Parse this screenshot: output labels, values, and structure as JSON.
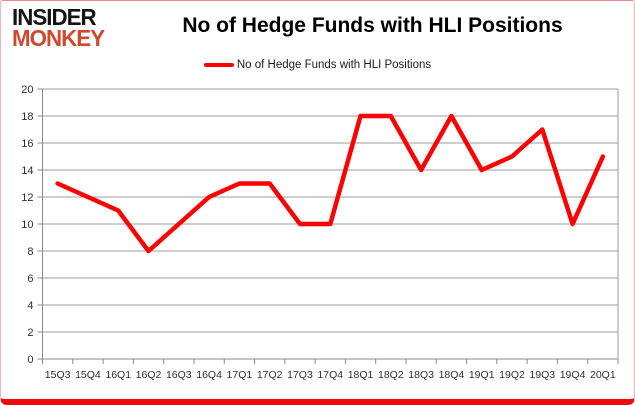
{
  "logo": {
    "line1": "INSIDER",
    "line2": "MONKEY",
    "accent_color": "#cd4a2e"
  },
  "header": {
    "title": "No of Hedge Funds with HLI Positions"
  },
  "legend": {
    "label": "No of Hedge Funds with HLI Positions",
    "line_color": "#ff0000"
  },
  "chart_data": {
    "type": "line",
    "title": "No of Hedge Funds with HLI Positions",
    "series": [
      {
        "name": "No of Hedge Funds with HLI Positions",
        "values": [
          13,
          12,
          11,
          8,
          10,
          12,
          13,
          13,
          10,
          10,
          18,
          18,
          14,
          18,
          14,
          15,
          17,
          10,
          15
        ],
        "color": "#ff0000"
      }
    ],
    "categories": [
      "15Q3",
      "15Q4",
      "16Q1",
      "16Q2",
      "16Q3",
      "16Q4",
      "17Q1",
      "17Q2",
      "17Q3",
      "17Q4",
      "18Q1",
      "18Q2",
      "18Q3",
      "18Q4",
      "19Q1",
      "19Q2",
      "19Q3",
      "19Q4",
      "20Q1"
    ],
    "xlabel": "",
    "ylabel": "",
    "ylim": [
      0,
      20
    ],
    "ytick_step": 2,
    "yticks": [
      0,
      2,
      4,
      6,
      8,
      10,
      12,
      14,
      16,
      18,
      20
    ],
    "grid": true,
    "legend_position": "top",
    "frame_bottom_color": "#ee0b0b"
  }
}
